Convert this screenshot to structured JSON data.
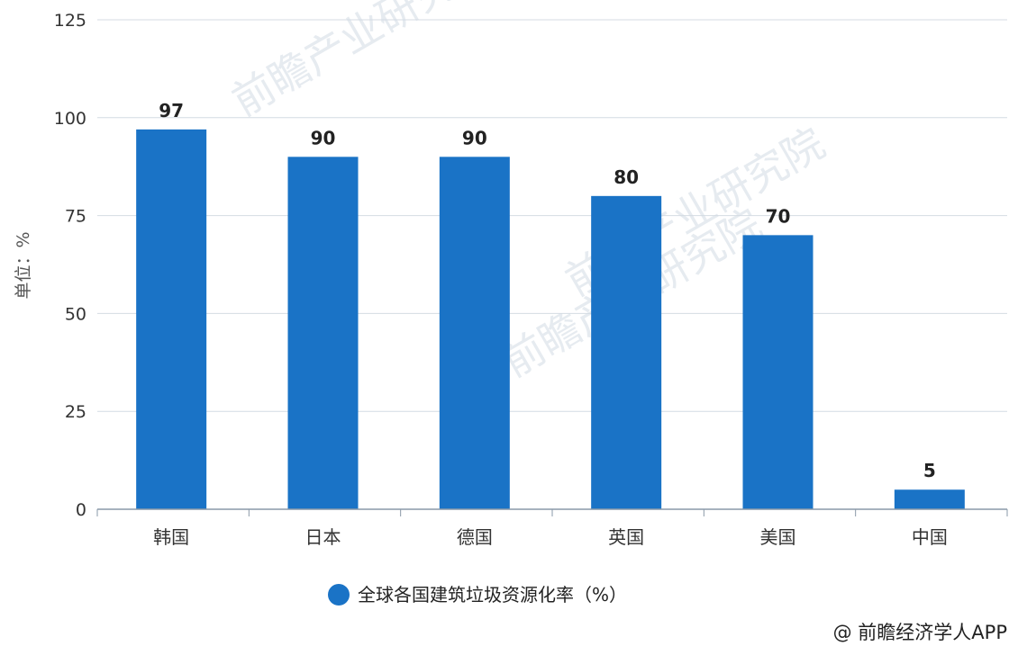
{
  "chart_data": {
    "type": "bar",
    "categories": [
      "韩国",
      "日本",
      "德国",
      "英国",
      "美国",
      "中国"
    ],
    "series": [
      {
        "name": "全球各国建筑垃圾资源化率（%）",
        "values": [
          97,
          90,
          90,
          80,
          70,
          5
        ]
      }
    ],
    "ylabel": "单位：%",
    "xlabel": "",
    "ylim": [
      0,
      125
    ],
    "yticks": [
      0,
      25,
      50,
      75,
      100,
      125
    ],
    "grid": true,
    "legend_position": "bottom-center",
    "data_labels": true
  },
  "legend": {
    "label": "全球各国建筑垃圾资源化率（%）"
  },
  "watermark": {
    "text": "前瞻产业研究院"
  },
  "credit": {
    "text": "@ 前瞻经济学人APP"
  },
  "colors": {
    "bar": "#1a73c6",
    "grid": "#d4dbe3",
    "axis": "#8a99a8"
  }
}
